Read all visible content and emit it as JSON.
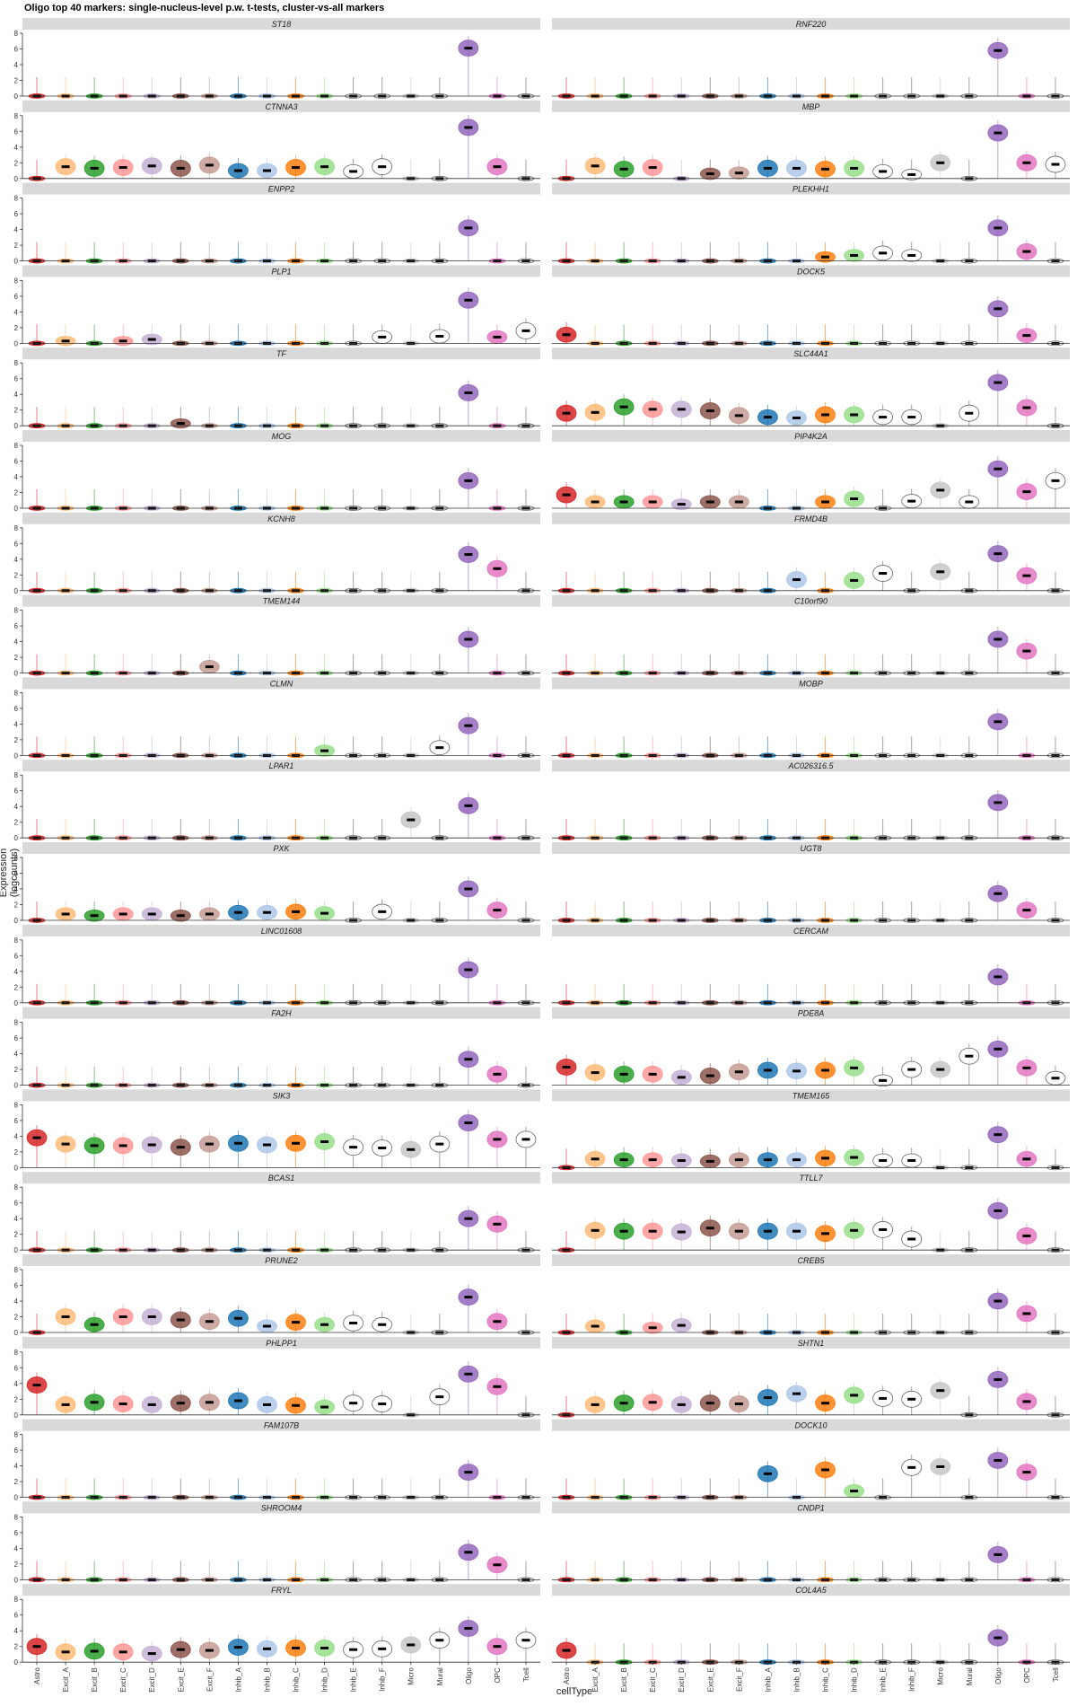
{
  "chart_data": {
    "type": "violin",
    "title": "Oligo top 40 markers: single-nucleus-level p.w. t-tests, cluster-vs-all markers",
    "xlabel": "cellType",
    "ylabel": "Expression (logcounts)",
    "ylim": [
      0,
      8
    ],
    "yticks": [
      0,
      2,
      4,
      6,
      8
    ],
    "categories": [
      "Astro",
      "Excit_A",
      "Excit_B",
      "Excit_C",
      "Excit_D",
      "Excit_E",
      "Excit_F",
      "Inhib_A",
      "Inhib_B",
      "Inhib_C",
      "Inhib_D",
      "Inhib_E",
      "Inhib_F",
      "Micro",
      "Mural",
      "Oligo",
      "OPC",
      "Tcell"
    ],
    "colors": {
      "Astro": "#d62728",
      "Excit_A": "#ffbb78",
      "Excit_B": "#2ca02c",
      "Excit_C": "#ff9896",
      "Excit_D": "#c5b0d5",
      "Excit_E": "#8c564b",
      "Excit_F": "#c49c94",
      "Inhib_A": "#1f77b4",
      "Inhib_B": "#aec7e8",
      "Inhib_C": "#ff7f0e",
      "Inhib_D": "#98df8a",
      "Inhib_E": "#ffffff",
      "Inhib_F": "#ffffff",
      "Micro": "#c7c7c7",
      "Mural": "#ffffff",
      "Oligo": "#9467bd",
      "OPC": "#e377c2",
      "Tcell": "#ffffff"
    },
    "genes": [
      {
        "name": "ST18",
        "medians": [
          0,
          0,
          0,
          0,
          0,
          0,
          0,
          0,
          0,
          0,
          0,
          0,
          0,
          0,
          0,
          6.1,
          0,
          0
        ]
      },
      {
        "name": "RNF220",
        "medians": [
          0,
          0,
          0,
          0,
          0,
          0,
          0,
          0,
          0,
          0,
          0,
          0,
          0,
          0,
          0,
          5.8,
          0,
          0
        ]
      },
      {
        "name": "CTNNA3",
        "medians": [
          0,
          1.5,
          1.3,
          1.4,
          1.6,
          1.3,
          1.7,
          1,
          1,
          1.4,
          1.5,
          0.9,
          1.5,
          0,
          0,
          6.5,
          1.5,
          0
        ]
      },
      {
        "name": "MBP",
        "medians": [
          0,
          1.6,
          1.2,
          1.4,
          0,
          0.6,
          0.7,
          1.3,
          1.3,
          1.2,
          1.3,
          0.9,
          0.5,
          2,
          0,
          5.8,
          2,
          1.8
        ]
      },
      {
        "name": "ENPP2",
        "medians": [
          0,
          0,
          0,
          0,
          0,
          0,
          0,
          0,
          0,
          0,
          0,
          0,
          0,
          0,
          0,
          4.2,
          0,
          0
        ]
      },
      {
        "name": "PLEKHH1",
        "medians": [
          0,
          0,
          0,
          0,
          0,
          0,
          0,
          0,
          0,
          0.5,
          0.7,
          1,
          0.7,
          0,
          0,
          4.2,
          1.2,
          0
        ]
      },
      {
        "name": "PLP1",
        "medians": [
          0,
          0.3,
          0,
          0.3,
          0.5,
          0,
          0,
          0,
          0,
          0,
          0,
          0,
          0.8,
          0,
          0.9,
          5.5,
          0.8,
          1.6
        ]
      },
      {
        "name": "DOCK5",
        "medians": [
          1.1,
          0,
          0,
          0,
          0,
          0,
          0,
          0,
          0,
          0,
          0,
          0,
          0,
          0,
          0,
          4.4,
          1,
          0
        ]
      },
      {
        "name": "TF",
        "medians": [
          0,
          0,
          0,
          0,
          0,
          0.3,
          0,
          0,
          0,
          0,
          0,
          0,
          0,
          0,
          0,
          4.2,
          0,
          0
        ]
      },
      {
        "name": "SLC44A1",
        "medians": [
          1.6,
          1.7,
          2.4,
          2.1,
          2.1,
          1.9,
          1.3,
          1.1,
          1,
          1.4,
          1.4,
          1.1,
          1.1,
          0,
          1.6,
          5.5,
          2.3,
          0
        ]
      },
      {
        "name": "MOG",
        "medians": [
          0,
          0,
          0,
          0,
          0,
          0,
          0,
          0,
          0,
          0,
          0,
          0,
          0,
          0,
          0,
          3.5,
          0,
          0
        ]
      },
      {
        "name": "PIP4K2A",
        "medians": [
          1.7,
          0.8,
          0.8,
          0.8,
          0.5,
          0.8,
          0.8,
          0,
          0,
          0.8,
          1.2,
          0,
          0.9,
          2.3,
          0.8,
          5,
          2.1,
          3.5
        ]
      },
      {
        "name": "KCNH8",
        "medians": [
          0,
          0,
          0,
          0,
          0,
          0,
          0,
          0,
          0,
          0,
          0,
          0,
          0,
          0,
          0,
          4.6,
          2.8,
          0
        ]
      },
      {
        "name": "FRMD4B",
        "medians": [
          0,
          0,
          0,
          0,
          0,
          0,
          0,
          0,
          1.4,
          0,
          1.3,
          2.2,
          0,
          2.4,
          0,
          4.7,
          1.9,
          0
        ]
      },
      {
        "name": "TMEM144",
        "medians": [
          0,
          0,
          0,
          0,
          0,
          0,
          0.8,
          0,
          0,
          0,
          0,
          0,
          0,
          0,
          0,
          4.3,
          0,
          0
        ]
      },
      {
        "name": "C10orf90",
        "medians": [
          0,
          0,
          0,
          0,
          0,
          0,
          0,
          0,
          0,
          0,
          0,
          0,
          0,
          0,
          0,
          4.3,
          2.8,
          0
        ]
      },
      {
        "name": "CLMN",
        "medians": [
          0,
          0,
          0,
          0,
          0,
          0,
          0,
          0,
          0,
          0,
          0.6,
          0,
          0,
          0,
          1,
          3.8,
          0,
          0
        ]
      },
      {
        "name": "MOBP",
        "medians": [
          0,
          0,
          0,
          0,
          0,
          0,
          0,
          0,
          0,
          0,
          0,
          0,
          0,
          0,
          0,
          4.3,
          0,
          0
        ]
      },
      {
        "name": "LPAR1",
        "medians": [
          0,
          0,
          0,
          0,
          0,
          0,
          0,
          0,
          0,
          0,
          0,
          0,
          0,
          2.3,
          0,
          4.1,
          0,
          0
        ]
      },
      {
        "name": "AC026316.5",
        "medians": [
          0,
          0,
          0,
          0,
          0,
          0,
          0,
          0,
          0,
          0,
          0,
          0,
          0,
          0,
          0,
          4.5,
          0,
          0
        ]
      },
      {
        "name": "PXK",
        "medians": [
          0,
          0.8,
          0.6,
          0.8,
          0.8,
          0.6,
          0.8,
          1,
          1,
          1.1,
          0.9,
          0,
          1.1,
          0,
          0,
          4,
          1.3,
          0
        ]
      },
      {
        "name": "UGT8",
        "medians": [
          0,
          0,
          0,
          0,
          0,
          0,
          0,
          0,
          0,
          0,
          0,
          0,
          0,
          0,
          0,
          3.4,
          1.3,
          0
        ]
      },
      {
        "name": "LINC01608",
        "medians": [
          0,
          0,
          0,
          0,
          0,
          0,
          0,
          0,
          0,
          0,
          0,
          0,
          0,
          0,
          0,
          4.2,
          0,
          0
        ]
      },
      {
        "name": "CERCAM",
        "medians": [
          0,
          0,
          0,
          0,
          0,
          0,
          0,
          0,
          0,
          0,
          0,
          0,
          0,
          0,
          0,
          3.3,
          0,
          0
        ]
      },
      {
        "name": "FA2H",
        "medians": [
          0,
          0,
          0,
          0,
          0,
          0,
          0,
          0,
          0,
          0,
          0,
          0,
          0,
          0,
          0,
          3.3,
          1.4,
          0
        ]
      },
      {
        "name": "PDE8A",
        "medians": [
          2.3,
          1.6,
          1.4,
          1.4,
          1,
          1.2,
          1.7,
          1.9,
          1.8,
          1.9,
          2.2,
          0.6,
          2,
          2,
          3.7,
          4.6,
          2.2,
          0.9
        ]
      },
      {
        "name": "SIK3",
        "medians": [
          3.8,
          3,
          2.8,
          2.8,
          2.9,
          2.6,
          3,
          3.1,
          2.9,
          3.1,
          3.3,
          2.6,
          2.5,
          2.3,
          3,
          5.7,
          3.6,
          3.6
        ]
      },
      {
        "name": "TMEM165",
        "medians": [
          0,
          1.1,
          1,
          1,
          0.9,
          0.8,
          1,
          1,
          1,
          1.2,
          1.3,
          0.9,
          0.9,
          0,
          0,
          4.2,
          1.1,
          0
        ]
      },
      {
        "name": "BCAS1",
        "medians": [
          0,
          0,
          0,
          0,
          0,
          0,
          0,
          0,
          0,
          0,
          0,
          0,
          0,
          0,
          0,
          4,
          3.3,
          0
        ]
      },
      {
        "name": "TTLL7",
        "medians": [
          0,
          2.5,
          2.4,
          2.4,
          2.3,
          2.8,
          2.4,
          2.4,
          2.4,
          2.1,
          2.5,
          2.6,
          1.4,
          0,
          0,
          5,
          1.8,
          0
        ]
      },
      {
        "name": "PRUNE2",
        "medians": [
          0,
          2,
          1,
          2,
          2,
          1.6,
          1.4,
          1.8,
          0.8,
          1.3,
          1,
          1.2,
          1,
          0,
          0,
          4.5,
          1.4,
          0
        ]
      },
      {
        "name": "CREB5",
        "medians": [
          0,
          0.8,
          0,
          0.6,
          0.9,
          0,
          0,
          0,
          0,
          0,
          0,
          0,
          0,
          0,
          0,
          4,
          2.4,
          0
        ]
      },
      {
        "name": "PHLPP1",
        "medians": [
          3.8,
          1.3,
          1.6,
          1.4,
          1.3,
          1.5,
          1.6,
          1.8,
          1.3,
          1.2,
          1,
          1.5,
          1.4,
          0,
          2.3,
          5.2,
          3.6,
          0
        ]
      },
      {
        "name": "SHTN1",
        "medians": [
          0,
          1.3,
          1.5,
          1.6,
          1.3,
          1.5,
          1.4,
          2.2,
          2.7,
          1.5,
          2.5,
          2.1,
          2,
          3.1,
          0,
          4.5,
          1.7,
          0
        ]
      },
      {
        "name": "FAM107B",
        "medians": [
          0,
          0,
          0,
          0,
          0,
          0,
          0,
          0,
          0,
          0,
          0,
          0,
          0,
          0,
          0,
          3.2,
          0,
          0
        ]
      },
      {
        "name": "DOCK10",
        "medians": [
          0,
          0,
          0,
          0,
          0,
          0,
          0,
          3,
          0,
          3.5,
          0.8,
          0,
          3.8,
          3.9,
          0,
          4.7,
          3.2,
          0
        ]
      },
      {
        "name": "SHROOM4",
        "medians": [
          0,
          0,
          0,
          0,
          0,
          0,
          0,
          0,
          0,
          0,
          0,
          0,
          0,
          0,
          0,
          3.5,
          1.9,
          0
        ]
      },
      {
        "name": "CNDP1",
        "medians": [
          0,
          0,
          0,
          0,
          0,
          0,
          0,
          0,
          0,
          0,
          0,
          0,
          0,
          0,
          0,
          3.2,
          0,
          0
        ]
      },
      {
        "name": "FRYL",
        "medians": [
          2,
          1.3,
          1.4,
          1.3,
          1.1,
          1.6,
          1.5,
          1.9,
          1.7,
          1.8,
          1.8,
          1.6,
          1.7,
          2.2,
          2.8,
          4.3,
          2,
          2.8
        ]
      },
      {
        "name": "COL4A5",
        "medians": [
          1.5,
          0,
          0,
          0,
          0,
          0,
          0,
          0,
          0,
          0,
          0,
          0,
          0,
          0,
          0,
          3.1,
          0,
          0
        ]
      }
    ]
  }
}
